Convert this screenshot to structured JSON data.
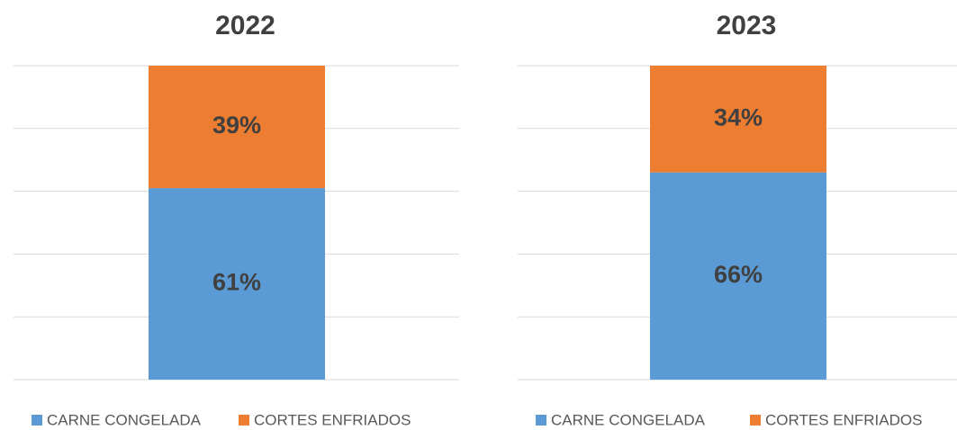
{
  "chart_data": [
    {
      "type": "bar",
      "stacked": true,
      "title": "2022",
      "categories": [
        null
      ],
      "series": [
        {
          "name": "CARNE CONGELADA",
          "color": "#5b9bd5",
          "values": [
            61
          ],
          "value_labels": [
            "61%"
          ]
        },
        {
          "name": "CORTES ENFRIADOS",
          "color": "#ed7d31",
          "values": [
            39
          ],
          "value_labels": [
            "39%"
          ]
        }
      ],
      "ylim": [
        0,
        100
      ],
      "yticks": [
        0,
        20,
        40,
        60,
        80,
        100
      ],
      "grid": true,
      "legend": "bottom"
    },
    {
      "type": "bar",
      "stacked": true,
      "title": "2023",
      "categories": [
        null
      ],
      "series": [
        {
          "name": "CARNE CONGELADA",
          "color": "#5b9bd5",
          "values": [
            66
          ],
          "value_labels": [
            "66%"
          ]
        },
        {
          "name": "CORTES ENFRIADOS",
          "color": "#ed7d31",
          "values": [
            34
          ],
          "value_labels": [
            "34%"
          ]
        }
      ],
      "ylim": [
        0,
        100
      ],
      "yticks": [
        0,
        20,
        40,
        60,
        80,
        100
      ],
      "grid": true,
      "legend": "bottom"
    }
  ]
}
